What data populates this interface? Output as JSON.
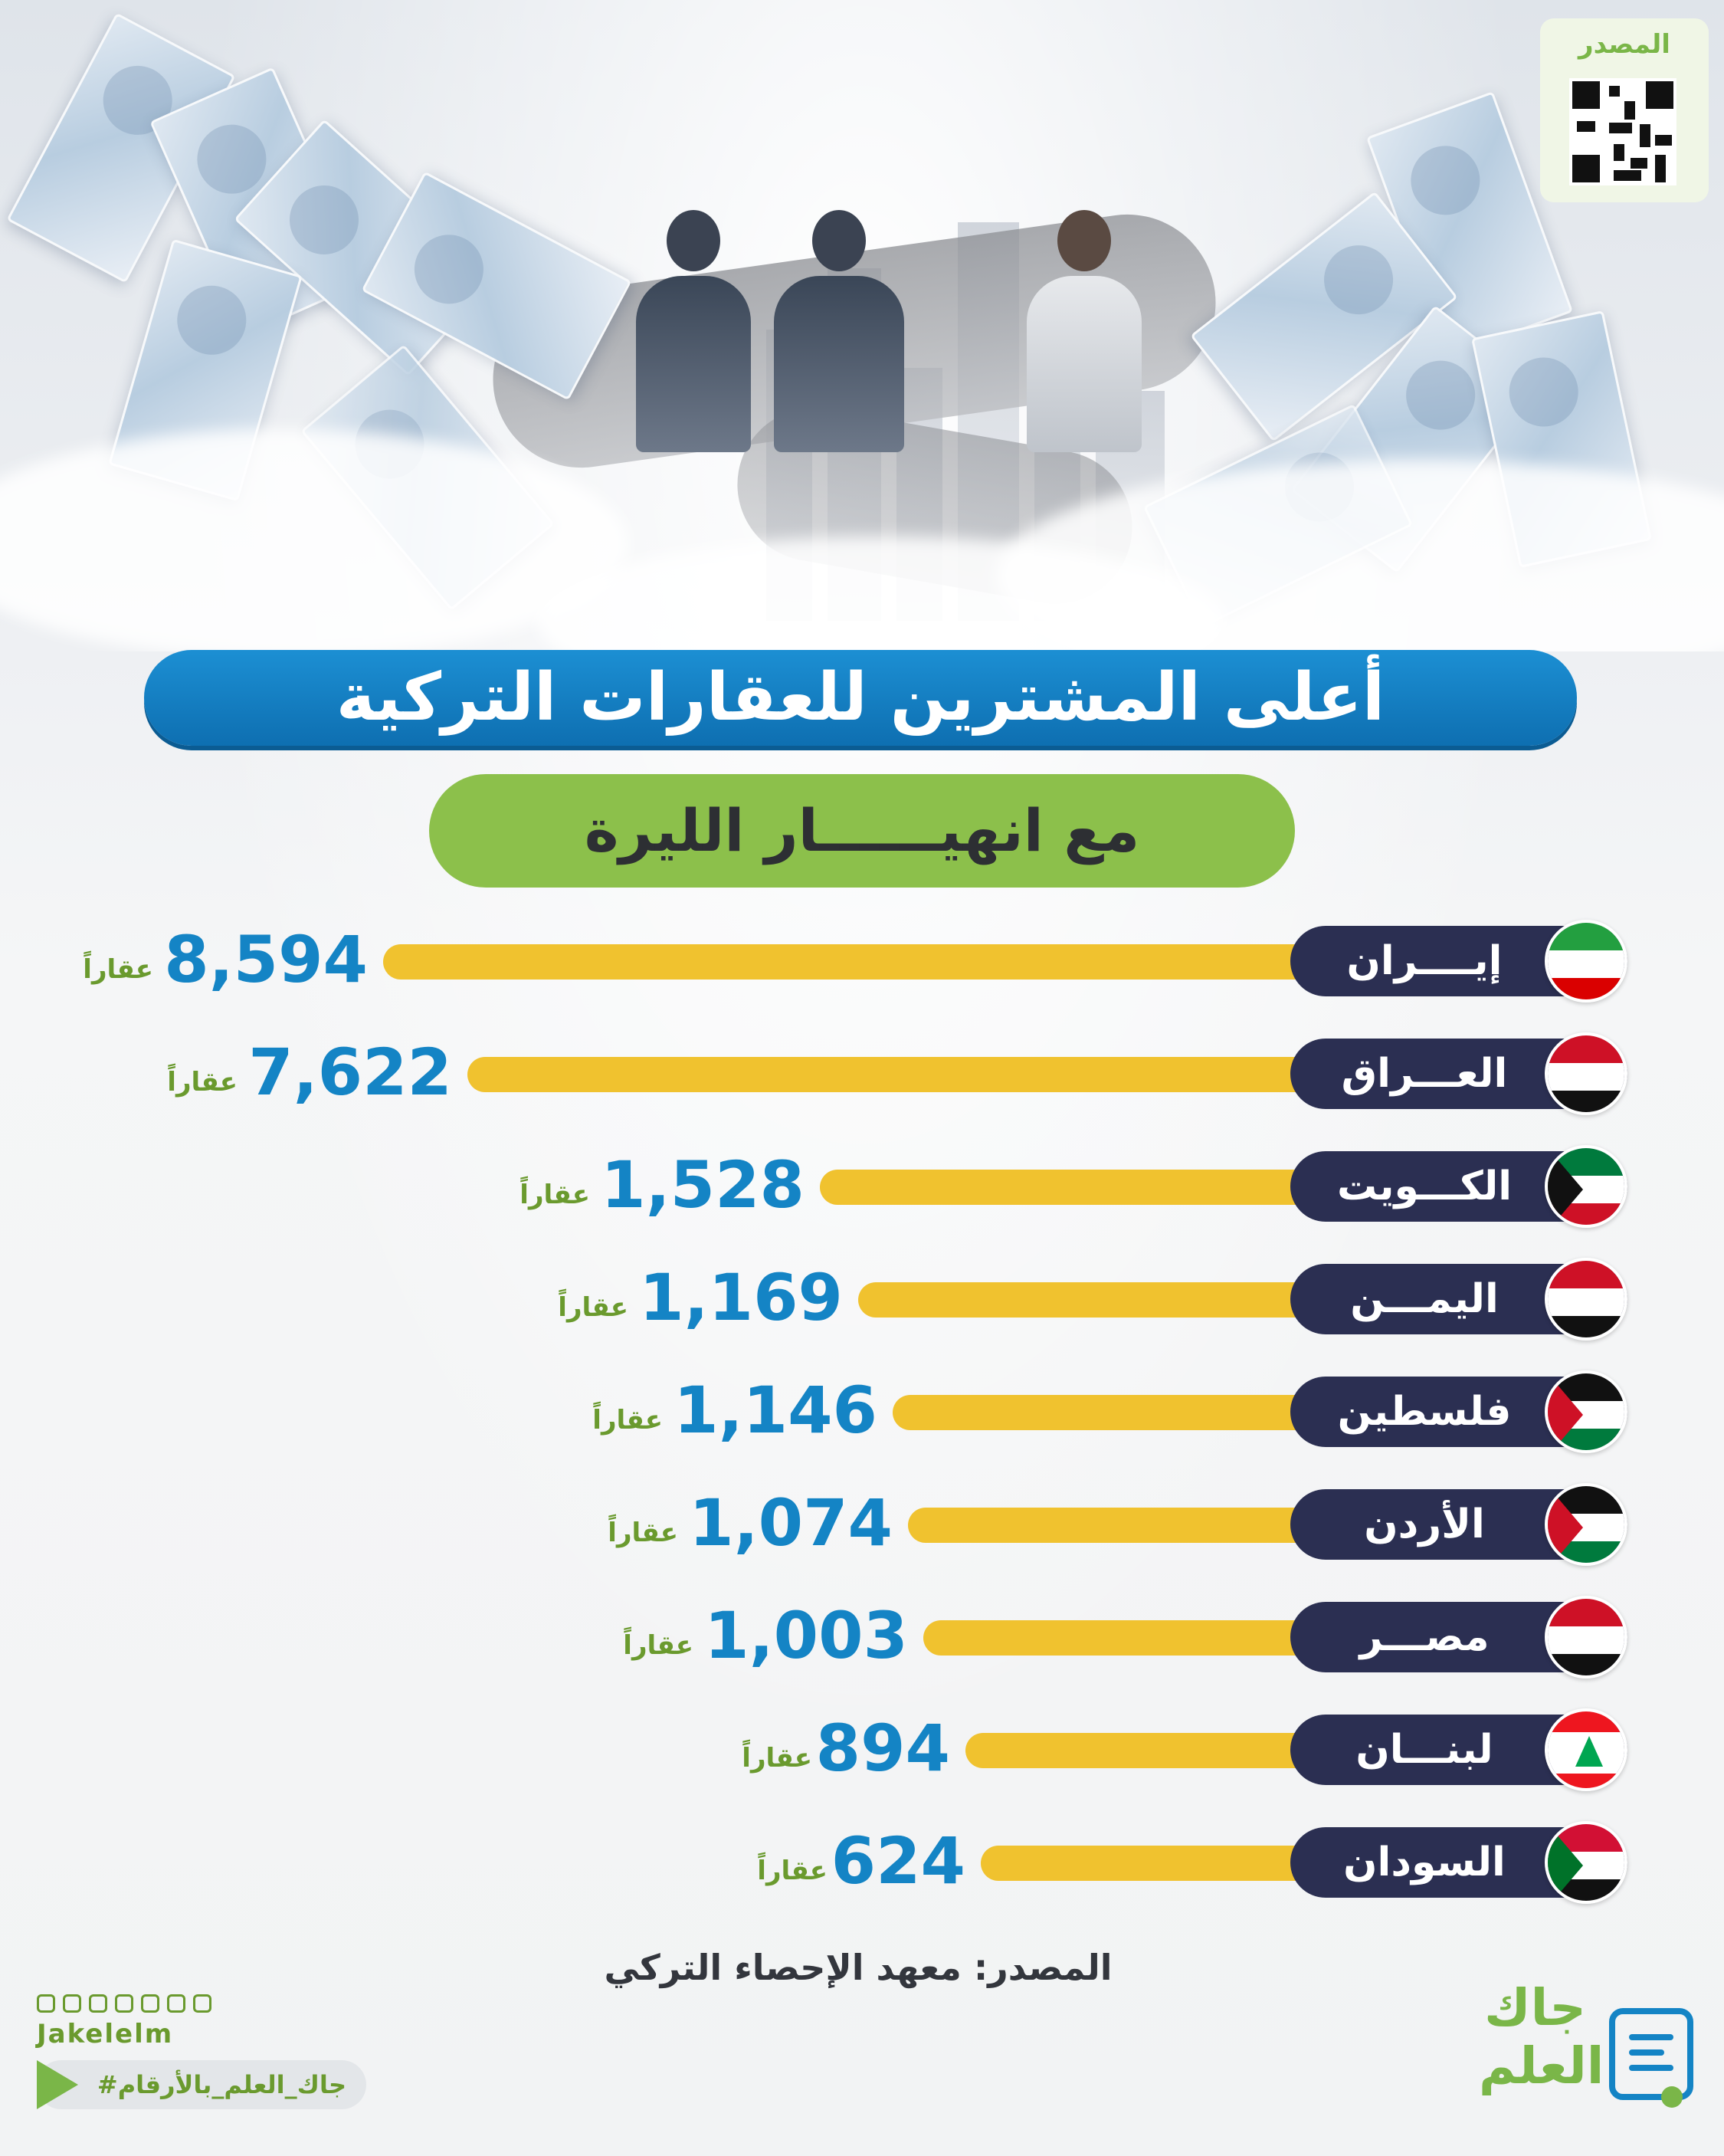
{
  "header": {
    "source_label": "المصدر",
    "title": "أعلى المشترين للعقارات التركية",
    "subtitle": "مع انهيــــــار الليرة"
  },
  "colors": {
    "title_bg": "#0e6fb1",
    "subtitle_bg": "#8cc04b",
    "bar": "#f0c22f",
    "pill": "#2b2f52",
    "value_text": "#1484c5",
    "unit_text": "#6a9a2e"
  },
  "chart_data": {
    "type": "bar",
    "orientation": "horizontal",
    "categories": [
      "إيــــران",
      "العـــراق",
      "الكـــويت",
      "اليمـــن",
      "فلسطين",
      "الأردن",
      "مصـــر",
      "لبنـــان",
      "السودان"
    ],
    "values": [
      8594,
      7622,
      1528,
      1169,
      1146,
      1074,
      1003,
      894,
      624
    ],
    "value_labels": [
      "8,594",
      "7,622",
      "1,528",
      "1,169",
      "1,146",
      "1,074",
      "1,003",
      "894",
      "624"
    ],
    "unit_label": "عقاراً",
    "flags": [
      "iran-flag-icon",
      "iraq-flag-icon",
      "kuwait-flag-icon",
      "yemen-flag-icon",
      "palestine-flag-icon",
      "jordan-flag-icon",
      "egypt-flag-icon",
      "lebanon-flag-icon",
      "sudan-flag-icon"
    ]
  },
  "footer": {
    "source": "المصدر: معهد الإحصاء التركي",
    "handle": "Jakelelm",
    "hashtag": "#جاك_العلم_بالأرقام",
    "logo_line1": "جاك",
    "logo_line2": "العلم",
    "social_icons": [
      "telegram-icon",
      "twitter-icon",
      "snapchat-icon",
      "linkedin-icon",
      "youtube-icon",
      "instagram-icon",
      "facebook-icon"
    ]
  }
}
